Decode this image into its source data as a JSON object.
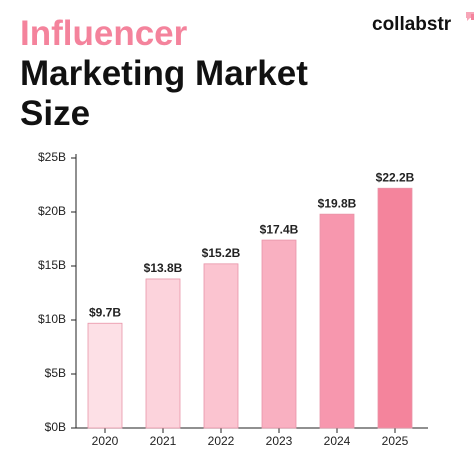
{
  "chart_data": {
    "type": "bar",
    "title_highlight": "Influencer",
    "title": "Marketing Market Size",
    "brand": "collabstr",
    "categories": [
      "2020",
      "2021",
      "2022",
      "2023",
      "2024",
      "2025"
    ],
    "values": [
      9.7,
      13.8,
      15.2,
      17.4,
      19.8,
      22.2
    ],
    "value_labels": [
      "$9.7B",
      "$13.8B",
      "$15.2B",
      "$17.4B",
      "$19.8B",
      "$22.2B"
    ],
    "colors": [
      "#fde0e6",
      "#fcd3dc",
      "#fbc4d0",
      "#f9b0c1",
      "#f797ae",
      "#f4849c"
    ],
    "title_highlight_color": "#f4839c",
    "ylim": [
      0,
      25
    ],
    "yticks": [
      {
        "value": 0,
        "label": "$0B"
      },
      {
        "value": 5,
        "label": "$5B"
      },
      {
        "value": 10,
        "label": "$10B"
      },
      {
        "value": 15,
        "label": "$15B"
      },
      {
        "value": 20,
        "label": "$20B"
      },
      {
        "value": 25,
        "label": "$25B"
      }
    ]
  }
}
